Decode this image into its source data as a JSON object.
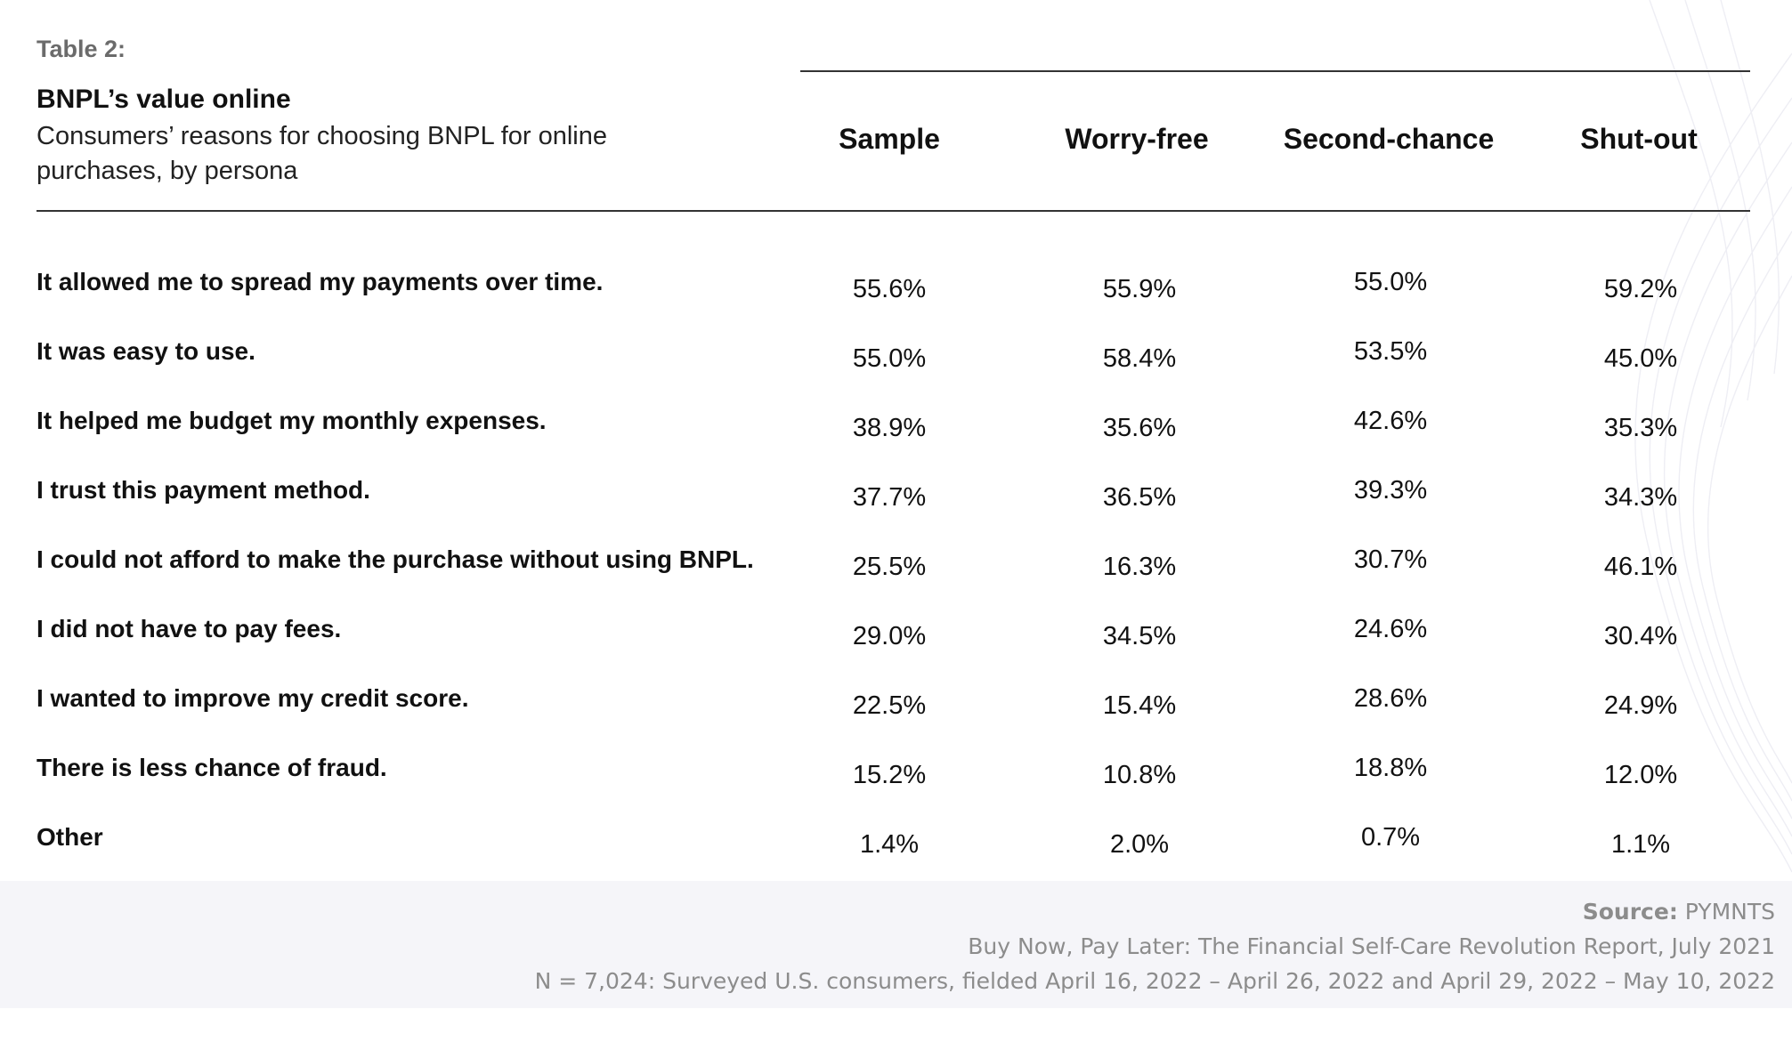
{
  "table_label": "Table 2:",
  "title": "BNPL’s value online",
  "subtitle": "Consumers’ reasons for choosing BNPL for online purchases, by persona",
  "columns": [
    "Sample",
    "Worry-free",
    "Second-chance",
    "Shut-out"
  ],
  "rows": [
    {
      "label": "It allowed me to spread my payments over time.",
      "values": [
        "55.6%",
        "55.9%",
        "55.0%",
        "59.2%"
      ]
    },
    {
      "label": "It was easy to use.",
      "values": [
        "55.0%",
        "58.4%",
        "53.5%",
        "45.0%"
      ]
    },
    {
      "label": "It helped me budget my monthly expenses.",
      "values": [
        "38.9%",
        "35.6%",
        "42.6%",
        "35.3%"
      ]
    },
    {
      "label": "I trust this payment method.",
      "values": [
        "37.7%",
        "36.5%",
        "39.3%",
        "34.3%"
      ]
    },
    {
      "label": "I could not afford to make the purchase without using BNPL.",
      "values": [
        "25.5%",
        "16.3%",
        "30.7%",
        "46.1%"
      ]
    },
    {
      "label": "I did not have to pay fees.",
      "values": [
        "29.0%",
        "34.5%",
        "24.6%",
        "30.4%"
      ]
    },
    {
      "label": "I wanted to improve my credit score.",
      "values": [
        "22.5%",
        "15.4%",
        "28.6%",
        "24.9%"
      ]
    },
    {
      "label": "There is less chance of fraud.",
      "values": [
        "15.2%",
        "10.8%",
        "18.8%",
        "12.0%"
      ]
    },
    {
      "label": "Other",
      "values": [
        "1.4%",
        "2.0%",
        "0.7%",
        "1.1%"
      ]
    }
  ],
  "source": {
    "label": "Source:",
    "name": "PYMNTS",
    "report": "Buy Now, Pay Later: The Financial Self-Care Revolution Report, July 2021",
    "note": "N = 7,024: Surveyed U.S. consumers, fielded April 16, 2022 – April 26, 2022 and April 29, 2022 – May 10, 2022"
  }
}
